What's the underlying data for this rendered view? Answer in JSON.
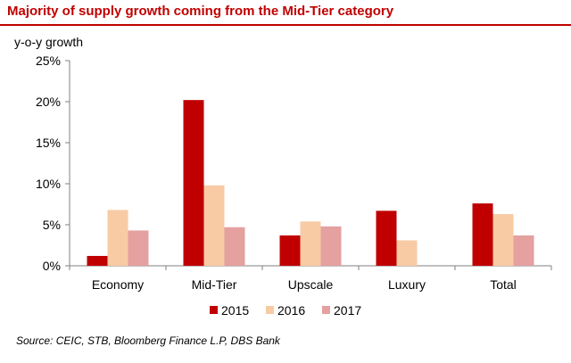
{
  "header": {
    "title": "Majority of supply growth coming from the Mid-Tier category"
  },
  "footer": {
    "source": "Source: CEIC, STB, Bloomberg Finance L.P,  DBS Bank"
  },
  "chart_data": {
    "type": "bar",
    "title": "Majority of supply growth coming from the Mid-Tier category",
    "ylabel": "y-o-y growth",
    "xlabel": "",
    "categories": [
      "Economy",
      "Mid-Tier",
      "Upscale",
      "Luxury",
      "Total"
    ],
    "series": [
      {
        "name": "2015",
        "color": "#c00000",
        "values": [
          1.2,
          20.2,
          3.7,
          6.7,
          7.6
        ]
      },
      {
        "name": "2016",
        "color": "#f8cba5",
        "values": [
          6.8,
          9.8,
          5.4,
          3.1,
          6.3
        ]
      },
      {
        "name": "2017",
        "color": "#e5a0a0",
        "values": [
          4.3,
          4.7,
          4.8,
          null,
          3.7
        ]
      }
    ],
    "ylim": [
      0,
      25
    ],
    "yticks": [
      "0%",
      "5%",
      "10%",
      "15%",
      "20%",
      "25%"
    ],
    "ytick_values": [
      0,
      5,
      10,
      15,
      20,
      25
    ],
    "grid": false,
    "legend": "bottom"
  }
}
